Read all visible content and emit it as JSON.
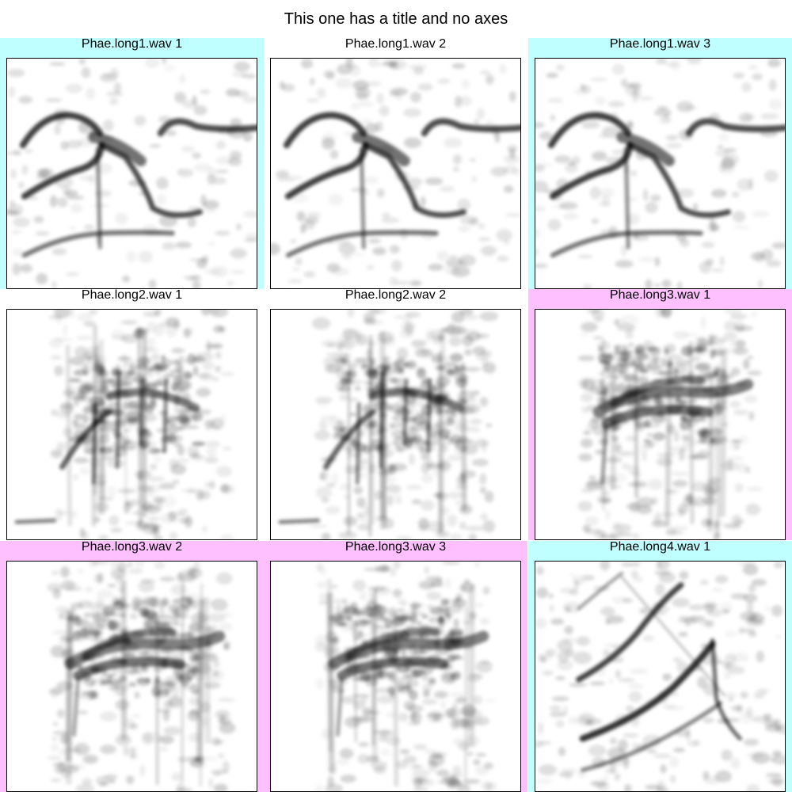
{
  "title": "This one has a title and no axes",
  "colors": {
    "cyan": "#c0ffff",
    "pink": "#ffc0ff",
    "white": "#ffffff",
    "ink": "#000000"
  },
  "chart_data": {
    "type": "heatmap",
    "title": "This one has a title and no axes",
    "xlabel": "",
    "ylabel": "",
    "axes": false,
    "grid": false,
    "layout": "3x3 grid of spectrograms",
    "panels": [
      {
        "title": "Phae.long1.wav 1",
        "background": "cyan",
        "pattern": "long1",
        "seed": 11
      },
      {
        "title": "Phae.long1.wav 2",
        "background": "white",
        "pattern": "long1",
        "seed": 12
      },
      {
        "title": "Phae.long1.wav 3",
        "background": "cyan",
        "pattern": "long1",
        "seed": 13
      },
      {
        "title": "Phae.long2.wav 1",
        "background": "white",
        "pattern": "long2",
        "seed": 21
      },
      {
        "title": "Phae.long2.wav 2",
        "background": "white",
        "pattern": "long2",
        "seed": 22
      },
      {
        "title": "Phae.long3.wav 1",
        "background": "pink",
        "pattern": "long3",
        "seed": 31
      },
      {
        "title": "Phae.long3.wav 2",
        "background": "pink",
        "pattern": "long3",
        "seed": 32
      },
      {
        "title": "Phae.long3.wav 3",
        "background": "pink",
        "pattern": "long3",
        "seed": 33
      },
      {
        "title": "Phae.long4.wav 1",
        "background": "cyan",
        "pattern": "long4",
        "seed": 41
      }
    ]
  }
}
